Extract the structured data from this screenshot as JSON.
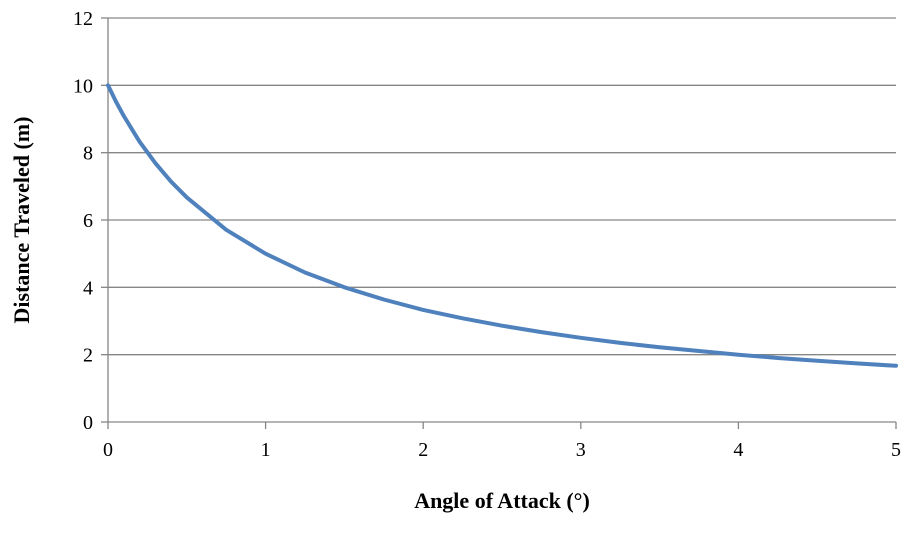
{
  "chart_data": {
    "type": "line",
    "title": "",
    "xlabel": "Angle of Attack (°)",
    "ylabel": "Distance Traveled (m)",
    "xlim": [
      0,
      5
    ],
    "ylim": [
      0,
      12
    ],
    "xticks": [
      0,
      1,
      2,
      3,
      4,
      5
    ],
    "yticks": [
      0,
      2,
      4,
      6,
      8,
      10,
      12
    ],
    "grid": "horizontal",
    "legend": "none",
    "series": [
      {
        "color": "#4F81BD",
        "x": [
          0,
          0.05,
          0.1,
          0.2,
          0.3,
          0.4,
          0.5,
          0.75,
          1.0,
          1.25,
          1.5,
          1.75,
          2.0,
          2.25,
          2.5,
          2.75,
          3.0,
          3.25,
          3.5,
          3.75,
          4.0,
          4.25,
          4.5,
          4.75,
          5.0
        ],
        "y": [
          10.0,
          9.52,
          9.09,
          8.33,
          7.69,
          7.14,
          6.67,
          5.71,
          5.0,
          4.44,
          4.0,
          3.64,
          3.33,
          3.08,
          2.86,
          2.67,
          2.5,
          2.35,
          2.22,
          2.11,
          2.0,
          1.9,
          1.82,
          1.74,
          1.67
        ]
      }
    ]
  }
}
